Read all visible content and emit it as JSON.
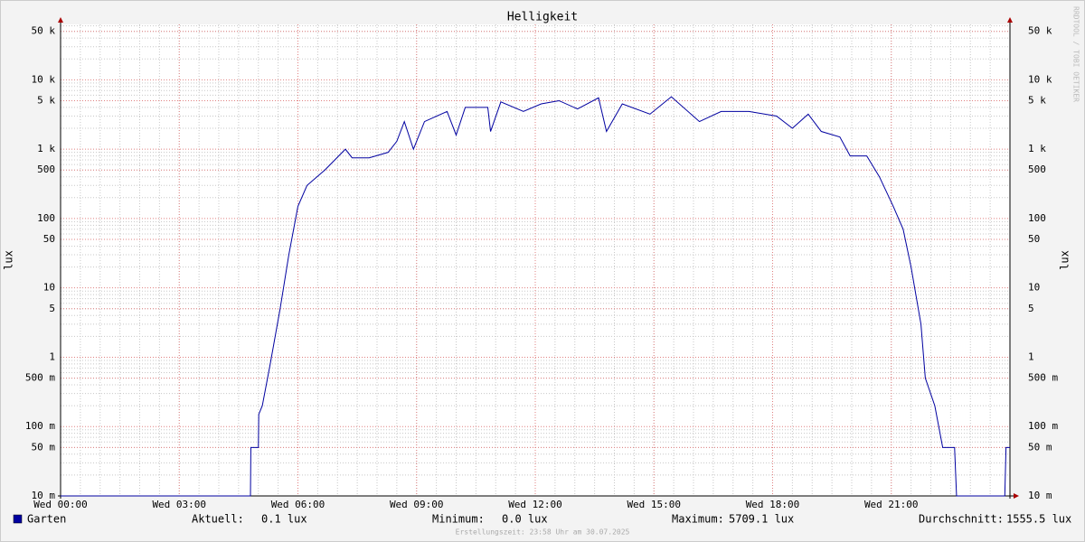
{
  "chart_data": {
    "type": "line",
    "title": "Helligkeit",
    "y_label": "lux",
    "log_scale": true,
    "grid": true,
    "side_label": "RRDTOOL / TOBI OETIKER",
    "footer": "Erstellungszeit: 23:58 Uhr am 30.07.2025",
    "xlim": [
      0,
      24
    ],
    "xticks": [
      {
        "value": 0,
        "label": "Wed 00:00"
      },
      {
        "value": 3,
        "label": "Wed 03:00"
      },
      {
        "value": 6,
        "label": "Wed 06:00"
      },
      {
        "value": 9,
        "label": "Wed 09:00"
      },
      {
        "value": 12,
        "label": "Wed 12:00"
      },
      {
        "value": 15,
        "label": "Wed 15:00"
      },
      {
        "value": 18,
        "label": "Wed 18:00"
      },
      {
        "value": 21,
        "label": "Wed 21:00"
      }
    ],
    "ylim": [
      0.01,
      63000
    ],
    "yticks": [
      {
        "value": 0.01,
        "label": "10 m"
      },
      {
        "value": 0.05,
        "label": "50 m"
      },
      {
        "value": 0.1,
        "label": "100 m"
      },
      {
        "value": 0.5,
        "label": "500 m"
      },
      1,
      5,
      10,
      50,
      100,
      500,
      {
        "value": 1000,
        "label": "1 k"
      },
      {
        "value": 5000,
        "label": "5 k"
      },
      {
        "value": 10000,
        "label": "10 k"
      },
      {
        "value": 50000,
        "label": "50 k"
      }
    ],
    "x": [
      0,
      4.8,
      4.81,
      5.0,
      5.01,
      5.1,
      5.3,
      5.55,
      5.77,
      6.0,
      6.23,
      6.68,
      7.2,
      7.37,
      7.8,
      8.28,
      8.5,
      8.69,
      8.92,
      9.2,
      9.77,
      10.0,
      10.23,
      10.8,
      10.87,
      11.13,
      11.7,
      12.15,
      12.6,
      13.07,
      13.6,
      13.8,
      14.2,
      14.9,
      15.44,
      16.15,
      16.7,
      17.4,
      18.1,
      18.5,
      18.9,
      19.23,
      19.7,
      19.96,
      20.38,
      20.7,
      21.05,
      21.3,
      21.5,
      21.75,
      21.86,
      22.1,
      22.3,
      22.6,
      22.65,
      23.87,
      23.9,
      24
    ],
    "series": [
      {
        "name": "Garten",
        "color": "#0000a0",
        "values": [
          0.01,
          0.01,
          0.05,
          0.05,
          0.15,
          0.2,
          0.8,
          5,
          30,
          150,
          300,
          500,
          1000,
          750,
          750,
          900,
          1300,
          2500,
          1000,
          2500,
          3500,
          1600,
          4000,
          4000,
          1800,
          4800,
          3500,
          4500,
          5000,
          3800,
          5500,
          1800,
          4500,
          3200,
          5700,
          2500,
          3500,
          3500,
          3000,
          2000,
          3200,
          1800,
          1500,
          800,
          800,
          400,
          150,
          70,
          20,
          3,
          0.5,
          0.2,
          0.05,
          0.05,
          0.01,
          0.01,
          0.05,
          0.05
        ]
      }
    ],
    "stats": [
      {
        "label": "Aktuell:",
        "value": "0.1 lux"
      },
      {
        "label": "Minimum:",
        "value": "0.0 lux"
      },
      {
        "label": "Maximum:",
        "value": "5709.1 lux"
      },
      {
        "label": "Durchschnitt:",
        "value": "1555.5 lux"
      }
    ]
  }
}
